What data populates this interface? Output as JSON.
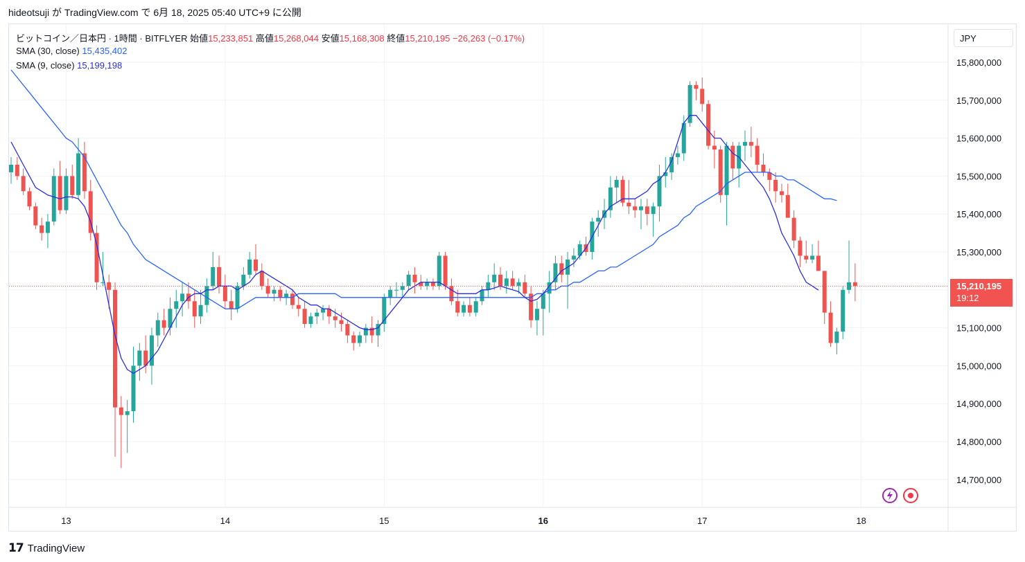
{
  "header": {
    "author": "hideotsuji",
    "text": "が TradingView.com で 6月 18, 2025 05:40 UTC+9 に公開"
  },
  "legend": {
    "symbol": "ビットコイン／日本円 · 1時間 · BITFLYER",
    "open_label": "始値",
    "open": "15,233,851",
    "high_label": "高値",
    "high": "15,268,044",
    "low_label": "安値",
    "low": "15,168,308",
    "close_label": "終値",
    "close": "15,210,195",
    "change": "−26,263 (−0.17%)",
    "sma30_label": "SMA (30, close)",
    "sma30_value": "15,435,402",
    "sma9_label": "SMA (9, close)",
    "sma9_value": "15,199,198"
  },
  "currency_button": "JPY",
  "price_tag": {
    "price": "15,210,195",
    "countdown": "19:12"
  },
  "footer": {
    "brand": "TradingView",
    "logo_icon": "tradingview-logo-icon"
  },
  "colors": {
    "up": "#26a69a",
    "down": "#ef5350",
    "sma30": "#2962ff",
    "sma9": "#2a2ee0"
  },
  "chart_data": {
    "type": "candlestick",
    "interval": "1h",
    "y_ticks": [
      "15,800,000",
      "15,700,000",
      "15,600,000",
      "15,500,000",
      "15,400,000",
      "15,300,000",
      "15,200,000",
      "15,100,000",
      "15,000,000",
      "14,900,000",
      "14,800,000",
      "14,700,000"
    ],
    "ylim": [
      14650000,
      15880000
    ],
    "x_ticks": [
      {
        "label": "13",
        "index": 9,
        "bold": false
      },
      {
        "label": "14",
        "index": 35,
        "bold": false
      },
      {
        "label": "15",
        "index": 61,
        "bold": false
      },
      {
        "label": "16",
        "index": 87,
        "bold": true
      },
      {
        "label": "17",
        "index": 113,
        "bold": false
      },
      {
        "label": "18",
        "index": 139,
        "bold": false
      }
    ],
    "candles": [
      [
        15510000,
        15550000,
        15480000,
        15530000
      ],
      [
        15530000,
        15550000,
        15490000,
        15500000
      ],
      [
        15500000,
        15520000,
        15450000,
        15460000
      ],
      [
        15460000,
        15470000,
        15410000,
        15420000
      ],
      [
        15420000,
        15430000,
        15360000,
        15370000
      ],
      [
        15370000,
        15390000,
        15330000,
        15350000
      ],
      [
        15350000,
        15400000,
        15310000,
        15380000
      ],
      [
        15380000,
        15520000,
        15370000,
        15500000
      ],
      [
        15500000,
        15540000,
        15400000,
        15410000
      ],
      [
        15410000,
        15520000,
        15400000,
        15500000
      ],
      [
        15500000,
        15530000,
        15440000,
        15450000
      ],
      [
        15450000,
        15600000,
        15440000,
        15560000
      ],
      [
        15560000,
        15590000,
        15440000,
        15460000
      ],
      [
        15460000,
        15490000,
        15330000,
        15350000
      ],
      [
        15350000,
        15370000,
        15200000,
        15220000
      ],
      [
        15220000,
        15300000,
        15210000,
        15220000
      ],
      [
        15220000,
        15240000,
        15150000,
        15200000
      ],
      [
        15200000,
        15220000,
        14760000,
        14890000
      ],
      [
        14890000,
        14920000,
        14730000,
        14870000
      ],
      [
        14870000,
        14910000,
        14770000,
        14880000
      ],
      [
        14880000,
        15050000,
        14850000,
        15000000
      ],
      [
        15000000,
        15060000,
        14960000,
        15040000
      ],
      [
        15040000,
        15080000,
        14980000,
        15000000
      ],
      [
        15000000,
        15100000,
        14950000,
        15080000
      ],
      [
        15080000,
        15140000,
        15050000,
        15120000
      ],
      [
        15120000,
        15150000,
        15080000,
        15100000
      ],
      [
        15100000,
        15180000,
        15080000,
        15150000
      ],
      [
        15150000,
        15200000,
        15100000,
        15170000
      ],
      [
        15170000,
        15220000,
        15130000,
        15190000
      ],
      [
        15190000,
        15220000,
        15150000,
        15170000
      ],
      [
        15170000,
        15200000,
        15100000,
        15130000
      ],
      [
        15130000,
        15200000,
        15110000,
        15160000
      ],
      [
        15160000,
        15230000,
        15140000,
        15210000
      ],
      [
        15210000,
        15300000,
        15200000,
        15260000
      ],
      [
        15260000,
        15290000,
        15190000,
        15210000
      ],
      [
        15210000,
        15240000,
        15150000,
        15170000
      ],
      [
        15170000,
        15200000,
        15120000,
        15150000
      ],
      [
        15150000,
        15220000,
        15140000,
        15210000
      ],
      [
        15210000,
        15260000,
        15200000,
        15240000
      ],
      [
        15240000,
        15300000,
        15230000,
        15280000
      ],
      [
        15280000,
        15320000,
        15240000,
        15250000
      ],
      [
        15250000,
        15270000,
        15200000,
        15210000
      ],
      [
        15210000,
        15230000,
        15180000,
        15190000
      ],
      [
        15190000,
        15210000,
        15170000,
        15200000
      ],
      [
        15200000,
        15210000,
        15170000,
        15180000
      ],
      [
        15180000,
        15200000,
        15160000,
        15190000
      ],
      [
        15190000,
        15200000,
        15150000,
        15160000
      ],
      [
        15160000,
        15180000,
        15130000,
        15150000
      ],
      [
        15150000,
        15170000,
        15100000,
        15110000
      ],
      [
        15110000,
        15140000,
        15100000,
        15130000
      ],
      [
        15130000,
        15150000,
        15110000,
        15140000
      ],
      [
        15140000,
        15160000,
        15120000,
        15150000
      ],
      [
        15150000,
        15160000,
        15110000,
        15130000
      ],
      [
        15130000,
        15150000,
        15100000,
        15120000
      ],
      [
        15120000,
        15140000,
        15090000,
        15110000
      ],
      [
        15110000,
        15120000,
        15060000,
        15080000
      ],
      [
        15080000,
        15090000,
        15040000,
        15060000
      ],
      [
        15060000,
        15090000,
        15050000,
        15080000
      ],
      [
        15080000,
        15110000,
        15060000,
        15100000
      ],
      [
        15100000,
        15130000,
        15060000,
        15080000
      ],
      [
        15080000,
        15120000,
        15050000,
        15110000
      ],
      [
        15110000,
        15190000,
        15090000,
        15180000
      ],
      [
        15180000,
        15210000,
        15160000,
        15200000
      ],
      [
        15200000,
        15220000,
        15180000,
        15200000
      ],
      [
        15200000,
        15220000,
        15180000,
        15210000
      ],
      [
        15210000,
        15250000,
        15200000,
        15240000
      ],
      [
        15240000,
        15260000,
        15190000,
        15220000
      ],
      [
        15220000,
        15240000,
        15200000,
        15210000
      ],
      [
        15210000,
        15230000,
        15200000,
        15220000
      ],
      [
        15220000,
        15230000,
        15200000,
        15210000
      ],
      [
        15210000,
        15300000,
        15200000,
        15290000
      ],
      [
        15290000,
        15300000,
        15200000,
        15210000
      ],
      [
        15210000,
        15230000,
        15160000,
        15170000
      ],
      [
        15170000,
        15200000,
        15130000,
        15140000
      ],
      [
        15140000,
        15170000,
        15130000,
        15160000
      ],
      [
        15160000,
        15180000,
        15130000,
        15140000
      ],
      [
        15140000,
        15180000,
        15130000,
        15170000
      ],
      [
        15170000,
        15210000,
        15160000,
        15200000
      ],
      [
        15200000,
        15240000,
        15180000,
        15220000
      ],
      [
        15220000,
        15270000,
        15200000,
        15240000
      ],
      [
        15240000,
        15260000,
        15200000,
        15210000
      ],
      [
        15210000,
        15250000,
        15190000,
        15230000
      ],
      [
        15230000,
        15250000,
        15200000,
        15210000
      ],
      [
        15210000,
        15230000,
        15190000,
        15220000
      ],
      [
        15220000,
        15240000,
        15180000,
        15190000
      ],
      [
        15190000,
        15210000,
        15100000,
        15120000
      ],
      [
        15120000,
        15170000,
        15080000,
        15150000
      ],
      [
        15150000,
        15200000,
        15080000,
        15190000
      ],
      [
        15190000,
        15250000,
        15140000,
        15220000
      ],
      [
        15220000,
        15290000,
        15200000,
        15270000
      ],
      [
        15270000,
        15290000,
        15220000,
        15240000
      ],
      [
        15240000,
        15300000,
        15150000,
        15280000
      ],
      [
        15280000,
        15310000,
        15260000,
        15290000
      ],
      [
        15290000,
        15330000,
        15280000,
        15320000
      ],
      [
        15320000,
        15340000,
        15290000,
        15300000
      ],
      [
        15300000,
        15390000,
        15280000,
        15380000
      ],
      [
        15380000,
        15410000,
        15340000,
        15390000
      ],
      [
        15390000,
        15440000,
        15360000,
        15410000
      ],
      [
        15410000,
        15500000,
        15390000,
        15470000
      ],
      [
        15470000,
        15500000,
        15430000,
        15490000
      ],
      [
        15490000,
        15500000,
        15420000,
        15430000
      ],
      [
        15430000,
        15490000,
        15400000,
        15420000
      ],
      [
        15420000,
        15440000,
        15390000,
        15410000
      ],
      [
        15410000,
        15440000,
        15360000,
        15420000
      ],
      [
        15420000,
        15440000,
        15370000,
        15400000
      ],
      [
        15400000,
        15430000,
        15340000,
        15420000
      ],
      [
        15420000,
        15530000,
        15380000,
        15500000
      ],
      [
        15500000,
        15550000,
        15470000,
        15510000
      ],
      [
        15510000,
        15560000,
        15490000,
        15550000
      ],
      [
        15550000,
        15580000,
        15530000,
        15560000
      ],
      [
        15560000,
        15660000,
        15540000,
        15640000
      ],
      [
        15640000,
        15750000,
        15630000,
        15740000
      ],
      [
        15740000,
        15750000,
        15700000,
        15730000
      ],
      [
        15730000,
        15760000,
        15670000,
        15690000
      ],
      [
        15690000,
        15700000,
        15570000,
        15580000
      ],
      [
        15580000,
        15620000,
        15520000,
        15570000
      ],
      [
        15570000,
        15580000,
        15430000,
        15450000
      ],
      [
        15450000,
        15590000,
        15370000,
        15580000
      ],
      [
        15580000,
        15590000,
        15490000,
        15520000
      ],
      [
        15520000,
        15590000,
        15470000,
        15580000
      ],
      [
        15580000,
        15620000,
        15540000,
        15590000
      ],
      [
        15590000,
        15630000,
        15550000,
        15580000
      ],
      [
        15580000,
        15600000,
        15510000,
        15530000
      ],
      [
        15530000,
        15560000,
        15500000,
        15510000
      ],
      [
        15510000,
        15520000,
        15460000,
        15490000
      ],
      [
        15490000,
        15510000,
        15430000,
        15460000
      ],
      [
        15460000,
        15480000,
        15430000,
        15450000
      ],
      [
        15450000,
        15480000,
        15400000,
        15390000
      ],
      [
        15390000,
        15410000,
        15310000,
        15330000
      ],
      [
        15330000,
        15340000,
        15260000,
        15290000
      ],
      [
        15290000,
        15330000,
        15270000,
        15280000
      ],
      [
        15280000,
        15320000,
        15270000,
        15290000
      ],
      [
        15290000,
        15330000,
        15250000,
        15250000
      ],
      [
        15250000,
        15250000,
        15110000,
        15140000
      ],
      [
        15140000,
        15170000,
        15050000,
        15060000
      ],
      [
        15060000,
        15100000,
        15030000,
        15090000
      ],
      [
        15090000,
        15210000,
        15070000,
        15200000
      ],
      [
        15200000,
        15330000,
        15190000,
        15220000
      ],
      [
        15220000,
        15270000,
        15170000,
        15210000
      ]
    ],
    "sma30": [
      15780000,
      15760000,
      15740000,
      15720000,
      15700000,
      15680000,
      15660000,
      15640000,
      15620000,
      15600000,
      15590000,
      15570000,
      15550000,
      15520000,
      15490000,
      15460000,
      15430000,
      15400000,
      15370000,
      15350000,
      15320000,
      15300000,
      15280000,
      15270000,
      15260000,
      15250000,
      15240000,
      15230000,
      15220000,
      15210000,
      15200000,
      15190000,
      15180000,
      15170000,
      15160000,
      15150000,
      15150000,
      15150000,
      15160000,
      15170000,
      15180000,
      15180000,
      15180000,
      15180000,
      15180000,
      15180000,
      15180000,
      15190000,
      15190000,
      15190000,
      15190000,
      15190000,
      15190000,
      15190000,
      15180000,
      15180000,
      15180000,
      15180000,
      15180000,
      15180000,
      15180000,
      15180000,
      15180000,
      15180000,
      15180000,
      15180000,
      15180000,
      15180000,
      15180000,
      15180000,
      15180000,
      15180000,
      15180000,
      15180000,
      15180000,
      15180000,
      15180000,
      15180000,
      15180000,
      15180000,
      15180000,
      15180000,
      15180000,
      15180000,
      15180000,
      15180000,
      15190000,
      15190000,
      15200000,
      15200000,
      15210000,
      15210000,
      15220000,
      15220000,
      15230000,
      15240000,
      15250000,
      15250000,
      15260000,
      15260000,
      15270000,
      15280000,
      15290000,
      15300000,
      15310000,
      15320000,
      15340000,
      15350000,
      15360000,
      15370000,
      15390000,
      15400000,
      15420000,
      15430000,
      15440000,
      15450000,
      15460000,
      15480000,
      15490000,
      15500000,
      15510000,
      15510000,
      15510000,
      15510000,
      15510000,
      15500000,
      15500000,
      15490000,
      15490000,
      15480000,
      15470000,
      15460000,
      15450000,
      15440000,
      15440000,
      15435402
    ],
    "sma9": [
      15590000,
      15560000,
      15530000,
      15500000,
      15470000,
      15460000,
      15450000,
      15445000,
      15440000,
      15445000,
      15445000,
      15440000,
      15420000,
      15380000,
      15320000,
      15240000,
      15160000,
      15080000,
      15020000,
      14990000,
      14980000,
      14990000,
      15000000,
      15020000,
      15040000,
      15070000,
      15100000,
      15130000,
      15160000,
      15180000,
      15190000,
      15190000,
      15200000,
      15200000,
      15210000,
      15210000,
      15210000,
      15200000,
      15210000,
      15220000,
      15240000,
      15250000,
      15240000,
      15230000,
      15220000,
      15210000,
      15200000,
      15180000,
      15170000,
      15160000,
      15160000,
      15150000,
      15150000,
      15140000,
      15130000,
      15120000,
      15110000,
      15100000,
      15095000,
      15095000,
      15100000,
      15120000,
      15140000,
      15160000,
      15180000,
      15200000,
      15210000,
      15220000,
      15220000,
      15220000,
      15220000,
      15210000,
      15200000,
      15190000,
      15190000,
      15190000,
      15190000,
      15200000,
      15200000,
      15205000,
      15210000,
      15205000,
      15200000,
      15195000,
      15180000,
      15170000,
      15175000,
      15190000,
      15210000,
      15230000,
      15250000,
      15260000,
      15270000,
      15290000,
      15310000,
      15340000,
      15370000,
      15400000,
      15420000,
      15430000,
      15440000,
      15440000,
      15440000,
      15450000,
      15460000,
      15480000,
      15490000,
      15510000,
      15540000,
      15590000,
      15640000,
      15660000,
      15660000,
      15640000,
      15620000,
      15600000,
      15600000,
      15580000,
      15560000,
      15550000,
      15530000,
      15510000,
      15490000,
      15470000,
      15440000,
      15400000,
      15350000,
      15320000,
      15290000,
      15250000,
      15220000,
      15210000,
      15199198
    ]
  }
}
